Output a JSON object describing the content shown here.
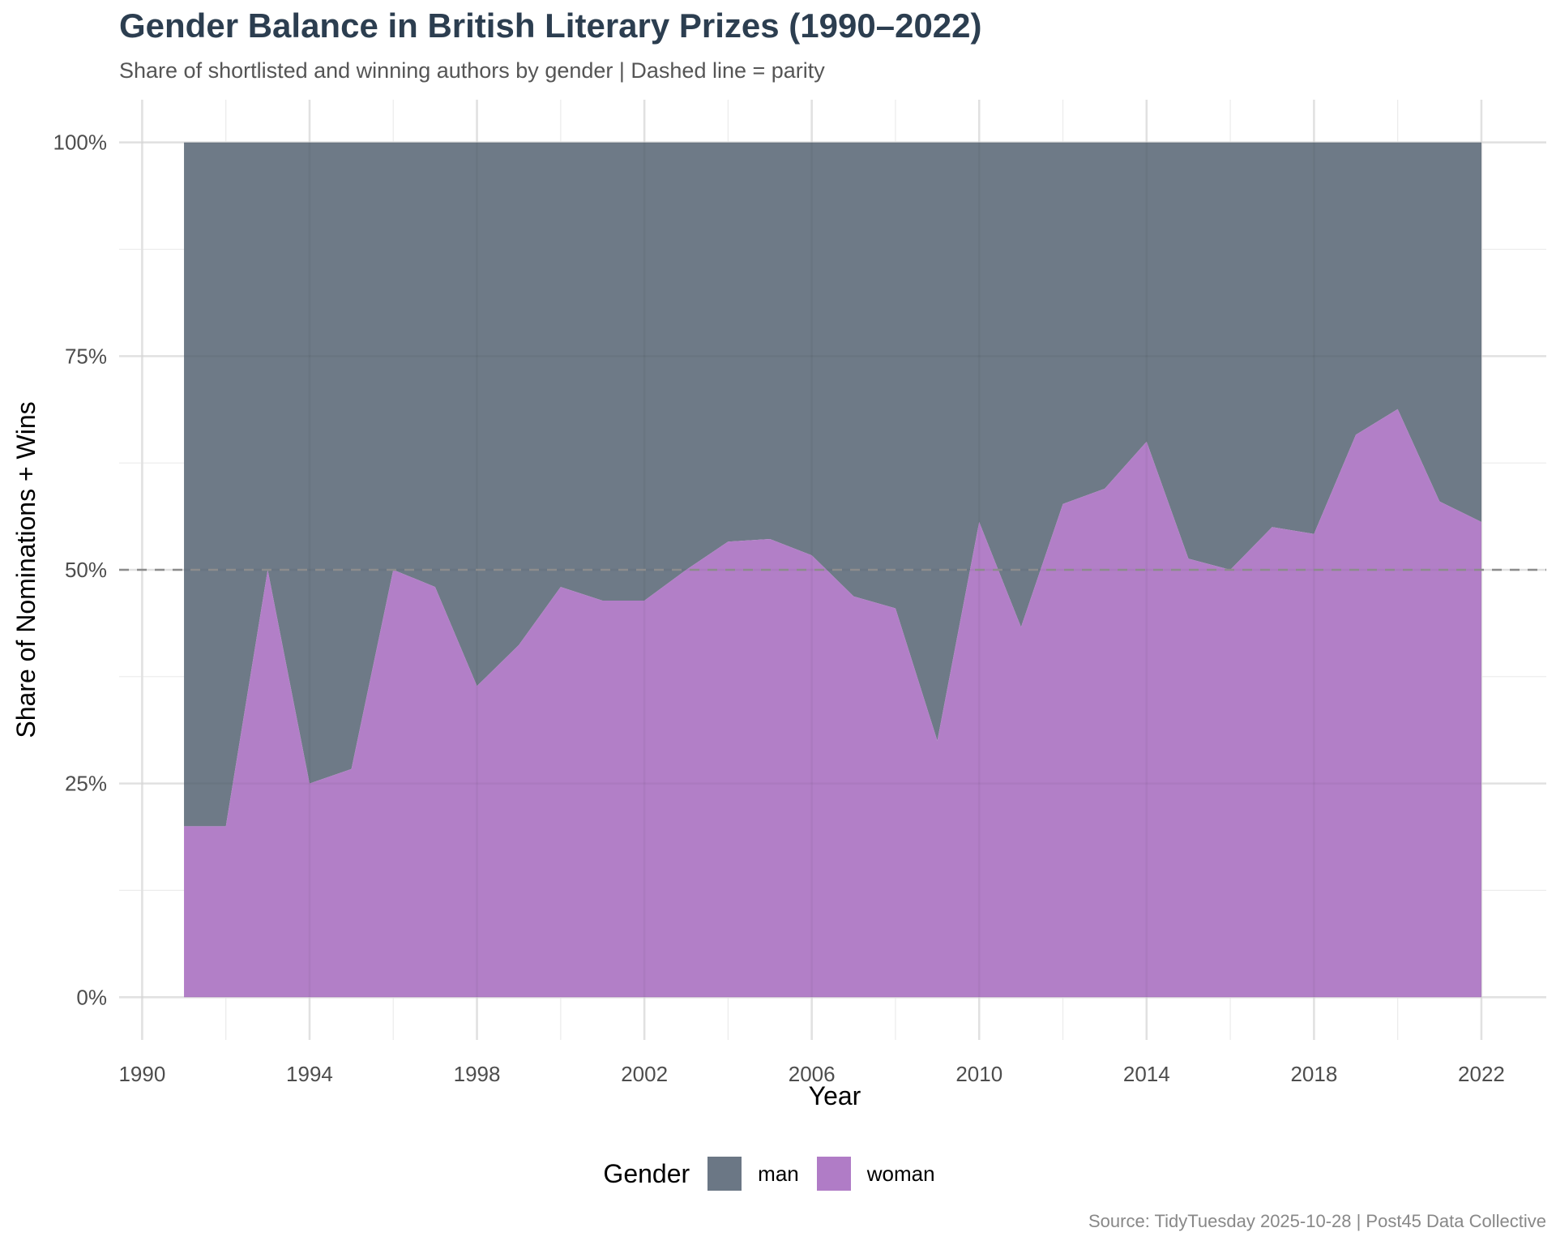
{
  "title": "Gender Balance in British Literary Prizes (1990–2022)",
  "subtitle": "Share of shortlisted and winning authors by gender | Dashed line = parity",
  "caption": "Source: TidyTuesday 2025-10-28 | Post45 Data Collective",
  "colors": {
    "man": "#6b7785",
    "woman": "#b07cc6",
    "grid": "#ebebeb",
    "parity": "#8c8c8c"
  },
  "chart_data": {
    "type": "area",
    "stacked": true,
    "normalized": true,
    "xlabel": "Year",
    "ylabel": "Share of Nominations + Wins",
    "xlim": [
      1989.45,
      2023.55
    ],
    "ylim": [
      -0.05,
      1.05
    ],
    "x_ticks": [
      1990,
      1994,
      1998,
      2002,
      2006,
      2010,
      2014,
      2018,
      2022
    ],
    "y_ticks": [
      0,
      0.25,
      0.5,
      0.75,
      1
    ],
    "y_tick_labels": [
      "0%",
      "25%",
      "50%",
      "75%",
      "100%"
    ],
    "parity_line": 0.5,
    "legend_title": "Gender",
    "legend_position": "bottom",
    "grid": true,
    "x": [
      1991,
      1992,
      1993,
      1994,
      1995,
      1996,
      1997,
      1998,
      1999,
      2000,
      2001,
      2002,
      2003,
      2004,
      2005,
      2006,
      2007,
      2008,
      2009,
      2010,
      2011,
      2012,
      2013,
      2014,
      2015,
      2016,
      2017,
      2018,
      2019,
      2020,
      2021,
      2022
    ],
    "series": [
      {
        "name": "man",
        "values": [
          0.8,
          0.8,
          0.5,
          0.75,
          0.733,
          0.5,
          0.52,
          0.636,
          0.588,
          0.52,
          0.536,
          0.536,
          0.5,
          0.467,
          0.464,
          0.483,
          0.531,
          0.545,
          0.7,
          0.444,
          0.567,
          0.423,
          0.405,
          0.35,
          0.487,
          0.5,
          0.45,
          0.458,
          0.342,
          0.312,
          0.42,
          0.444
        ]
      },
      {
        "name": "woman",
        "values": [
          0.2,
          0.2,
          0.5,
          0.25,
          0.267,
          0.5,
          0.48,
          0.364,
          0.412,
          0.48,
          0.464,
          0.464,
          0.5,
          0.533,
          0.536,
          0.517,
          0.469,
          0.455,
          0.3,
          0.556,
          0.433,
          0.577,
          0.595,
          0.65,
          0.513,
          0.5,
          0.55,
          0.542,
          0.658,
          0.688,
          0.58,
          0.556
        ]
      }
    ]
  }
}
